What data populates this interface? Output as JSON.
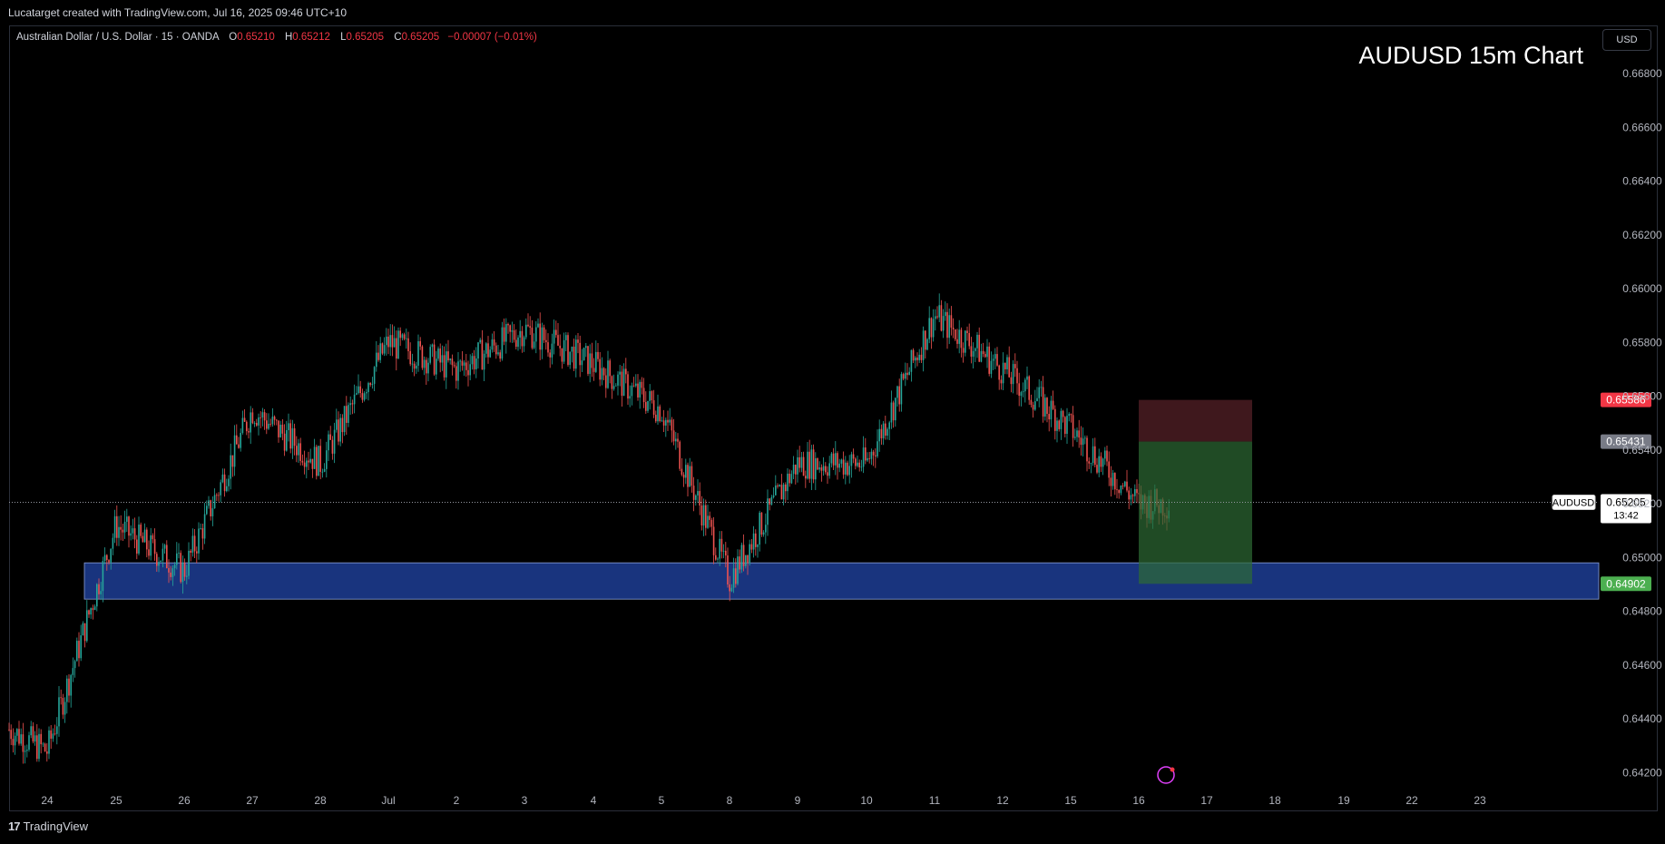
{
  "header": {
    "caption": "Lucatarget created with TradingView.com, Jul 16, 2025 09:46 UTC+10"
  },
  "legend": {
    "symbol": "Australian Dollar / U.S. Dollar · 15 · OANDA",
    "o_label": "O",
    "o_value": "0.65210",
    "h_label": "H",
    "h_value": "0.65212",
    "l_label": "L",
    "l_value": "0.65205",
    "c_label": "C",
    "c_value": "0.65205",
    "change": "−0.00007 (−0.01%)"
  },
  "title": "AUDUSD 15m Chart",
  "currency_button": "USD",
  "footer": {
    "brand": "TradingView",
    "logo": "17"
  },
  "colors": {
    "up": "#26a69a",
    "down": "#ef5350",
    "background": "#000000",
    "support_zone": "#1c3a8c",
    "target_zone": "#2e6b34",
    "stop_zone": "#4a1c22",
    "stop_badge": "#f23645",
    "entry_badge": "#787b86",
    "target_badge": "#4caf50"
  },
  "icons": {
    "logo": "tradingview-logo-icon",
    "alert": "lightning-alert-icon"
  },
  "chart_data": {
    "type": "candlestick",
    "symbol": "AUDUSD",
    "timeframe": "15m",
    "ylim": [
      0.6418,
      0.669
    ],
    "y_ticks": [
      "0.66800",
      "0.66600",
      "0.66400",
      "0.66200",
      "0.66000",
      "0.65800",
      "0.65600",
      "0.65400",
      "0.65200",
      "0.65000",
      "0.64800",
      "0.64600",
      "0.64400",
      "0.64200"
    ],
    "x_labels": [
      "24",
      "25",
      "26",
      "27",
      "28",
      "Jul",
      "2",
      "3",
      "4",
      "5",
      "8",
      "9",
      "10",
      "11",
      "12",
      "15",
      "16",
      "17",
      "18",
      "19",
      "22",
      "23"
    ],
    "price_path": [
      {
        "day": "24",
        "price": 0.6428
      },
      {
        "day": "25",
        "price": 0.6512
      },
      {
        "day": "26",
        "price": 0.6495
      },
      {
        "day": "27",
        "price": 0.6555
      },
      {
        "day": "28",
        "price": 0.6535
      },
      {
        "day": "Jul",
        "price": 0.658
      },
      {
        "day": "2",
        "price": 0.657
      },
      {
        "day": "3",
        "price": 0.6585
      },
      {
        "day": "4",
        "price": 0.6572
      },
      {
        "day": "5",
        "price": 0.6555
      },
      {
        "day": "8",
        "price": 0.6492
      },
      {
        "day": "9",
        "price": 0.6535
      },
      {
        "day": "10",
        "price": 0.6535
      },
      {
        "day": "11",
        "price": 0.659
      },
      {
        "day": "12",
        "price": 0.657
      },
      {
        "day": "15",
        "price": 0.6548
      },
      {
        "day": "16",
        "price": 0.652
      }
    ],
    "current_price": {
      "label": "AUDUSD",
      "value": "0.65205",
      "countdown": "13:42"
    },
    "zones": [
      {
        "name": "support-zone",
        "low": 0.64845,
        "high": 0.6498
      }
    ],
    "position": {
      "type": "short",
      "stop": "0.65586",
      "entry": "0.65431",
      "target": "0.64902",
      "start": "16",
      "end": "17"
    }
  }
}
